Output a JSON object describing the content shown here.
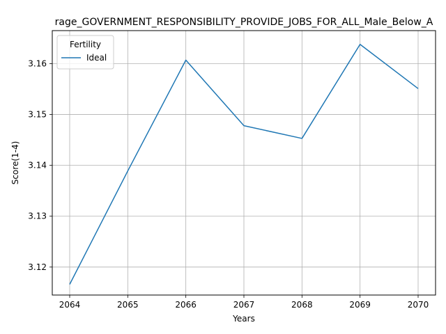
{
  "chart_data": {
    "type": "line",
    "title": "rage_GOVERNMENT_RESPONSIBILITY_PROVIDE_JOBS_FOR_ALL_Male_Below_A",
    "xlabel": "Years",
    "ylabel": "Score(1-4)",
    "x": [
      2064,
      2065,
      2066,
      2067,
      2068,
      2069,
      2070
    ],
    "xlim": [
      2063.7,
      2070.3
    ],
    "ylim": [
      3.1145,
      3.1665
    ],
    "xticks": [
      "2064",
      "2065",
      "2066",
      "2067",
      "2068",
      "2069",
      "2070"
    ],
    "yticks": [
      "3.12",
      "3.13",
      "3.14",
      "3.15",
      "3.16"
    ],
    "grid": true,
    "legend": {
      "title": "Fertility",
      "position": "top-left"
    },
    "series": [
      {
        "name": "Ideal",
        "color": "#1f77b4",
        "values": [
          3.1166,
          3.1389,
          3.1607,
          3.1478,
          3.1453,
          3.1638,
          3.1551
        ]
      }
    ]
  }
}
